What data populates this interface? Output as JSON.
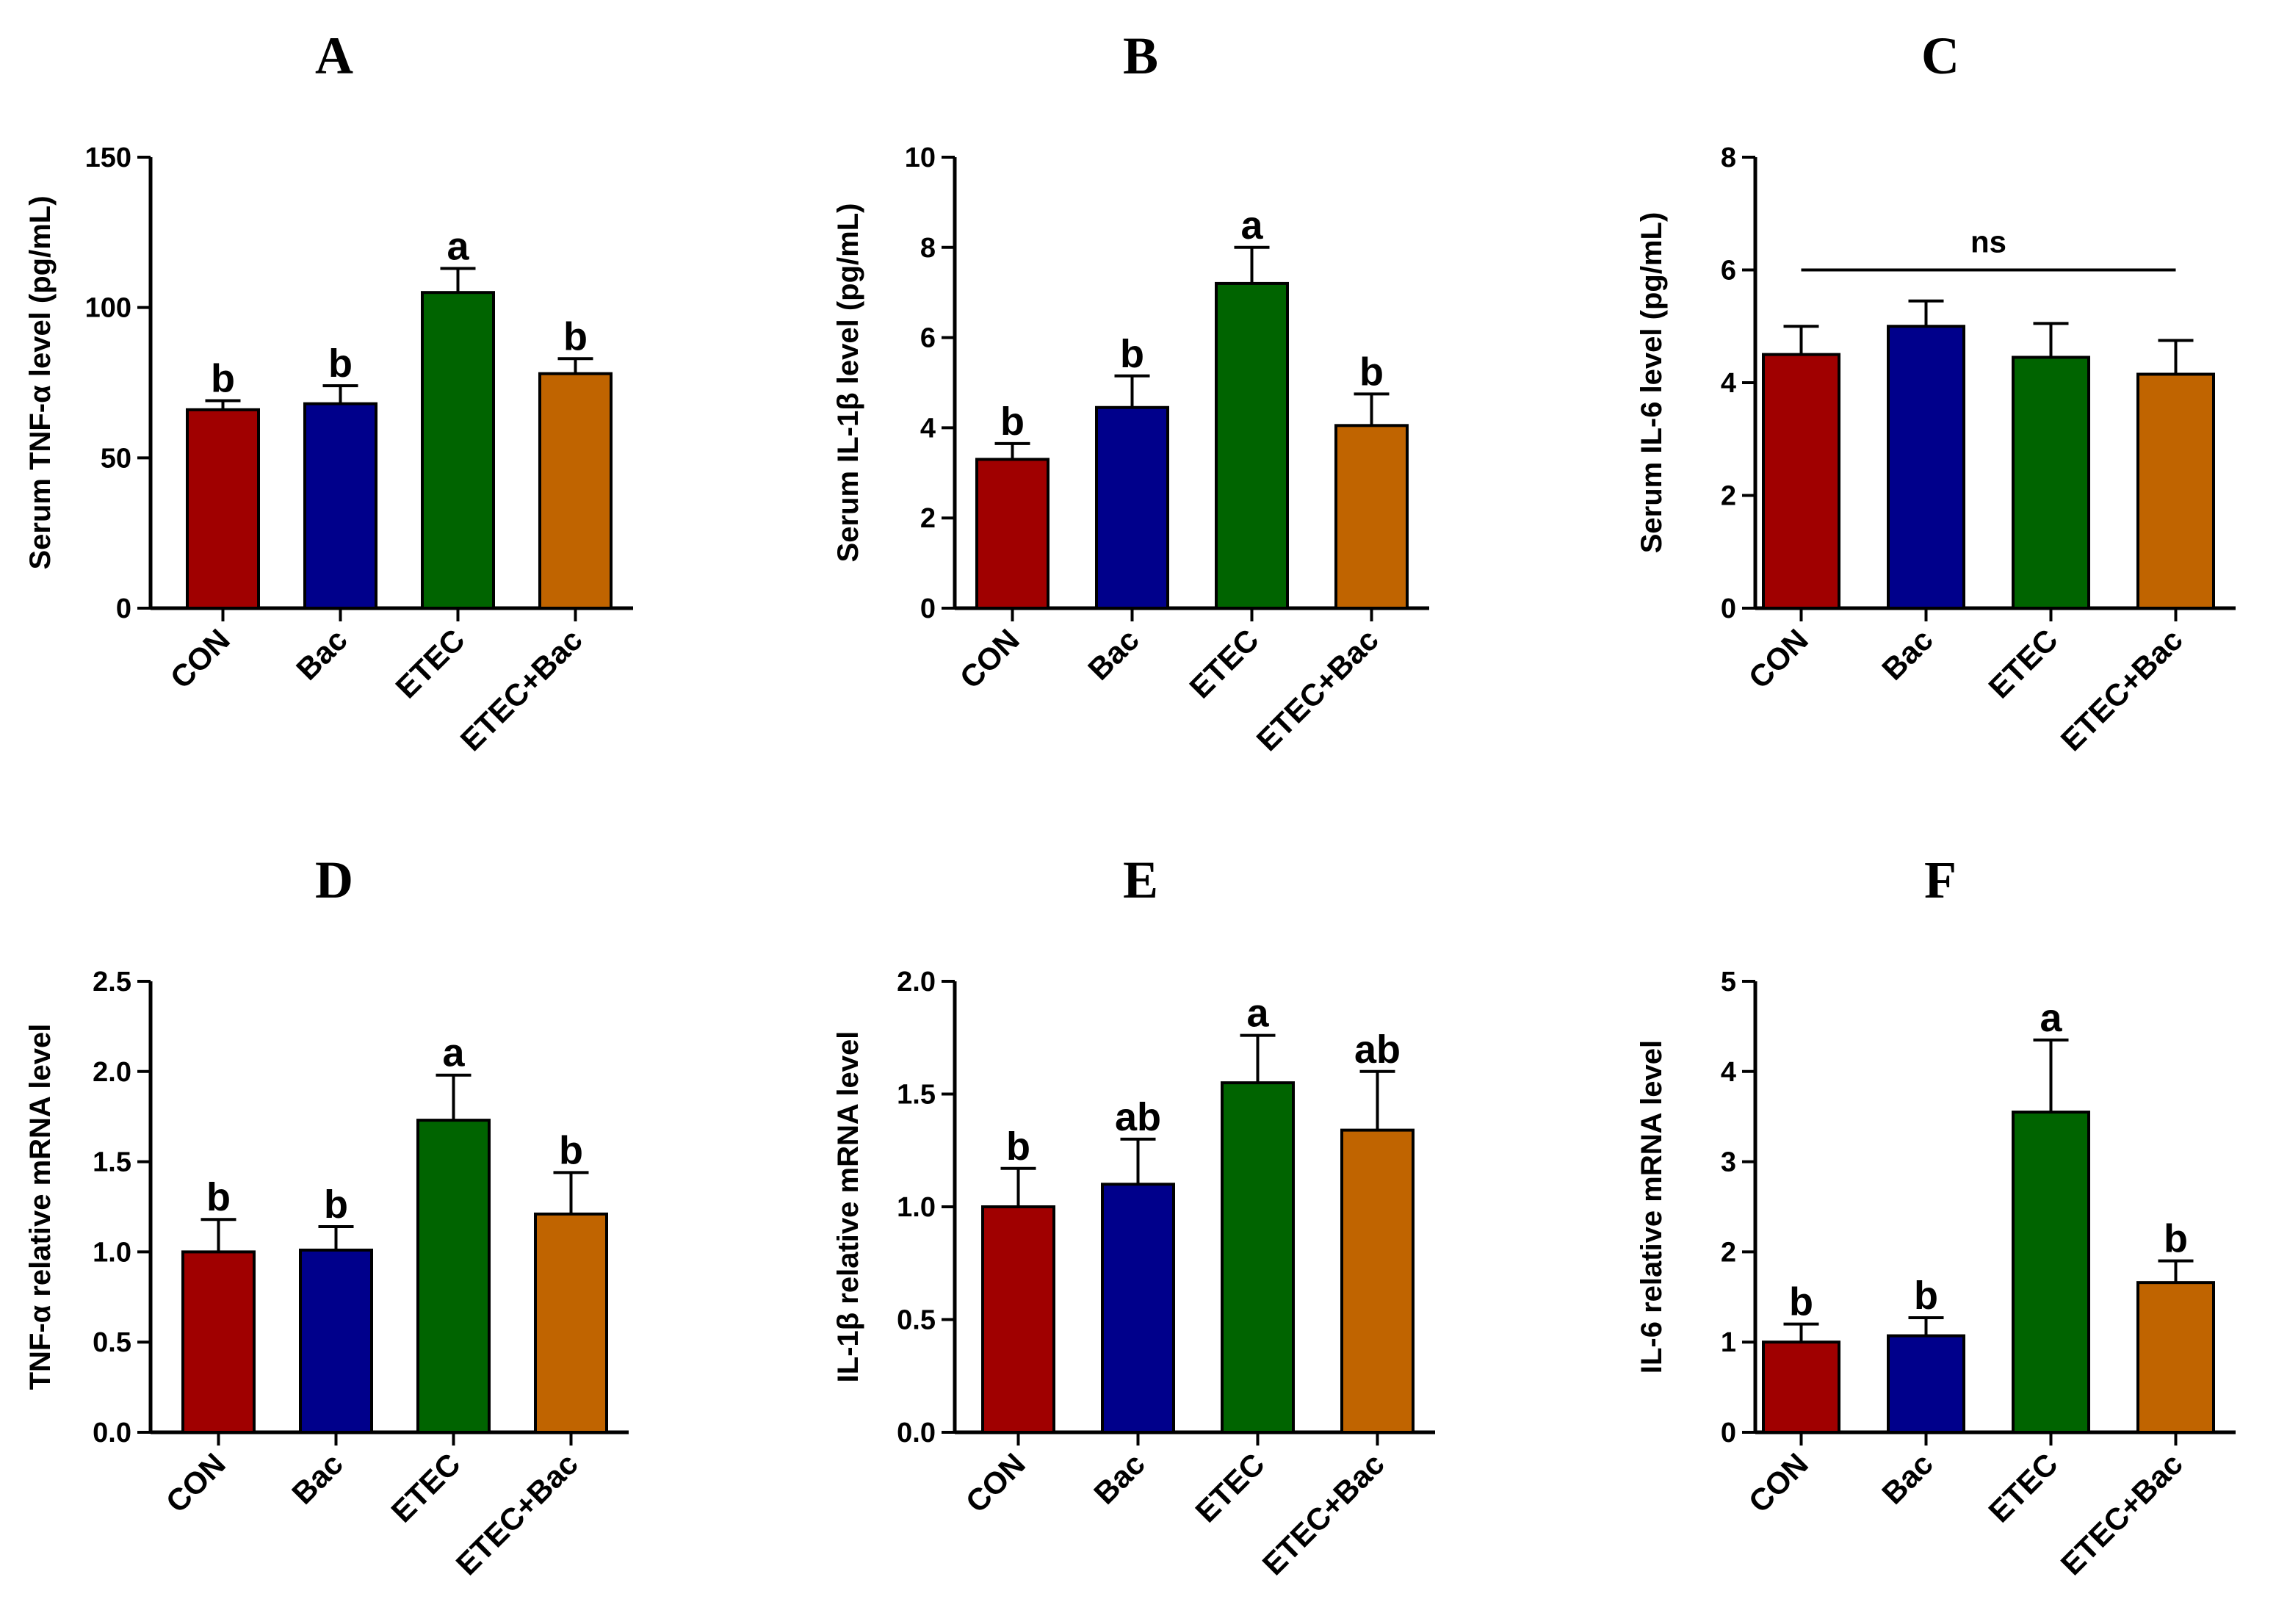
{
  "chart_data": [
    {
      "type": "bar",
      "panel": "A",
      "ylabel": "Serum TNF-α level (pg/mL)",
      "ylim": [
        0,
        150
      ],
      "yticks": [
        0,
        50,
        100,
        150
      ],
      "categories": [
        "CON",
        "Bac",
        "ETEC",
        "ETEC+Bac"
      ],
      "values": [
        66,
        68,
        105,
        78
      ],
      "errors": [
        3,
        6,
        8,
        5
      ],
      "sig_labels": [
        "b",
        "b",
        "a",
        "b"
      ]
    },
    {
      "type": "bar",
      "panel": "B",
      "ylabel": "Serum IL-1β level (pg/mL)",
      "ylim": [
        0,
        10
      ],
      "yticks": [
        0,
        2,
        4,
        6,
        8,
        10
      ],
      "categories": [
        "CON",
        "Bac",
        "ETEC",
        "ETEC+Bac"
      ],
      "values": [
        3.3,
        4.45,
        7.2,
        4.05
      ],
      "errors": [
        0.35,
        0.7,
        0.8,
        0.7
      ],
      "sig_labels": [
        "b",
        "b",
        "a",
        "b"
      ]
    },
    {
      "type": "bar",
      "panel": "C",
      "ylabel": "Serum IL-6 level (pg/mL)",
      "ylim": [
        0,
        8
      ],
      "yticks": [
        0,
        2,
        4,
        6,
        8
      ],
      "categories": [
        "CON",
        "Bac",
        "ETEC",
        "ETEC+Bac"
      ],
      "values": [
        4.5,
        5.0,
        4.45,
        4.15
      ],
      "errors": [
        0.5,
        0.45,
        0.6,
        0.6
      ],
      "sig_labels": [
        "",
        "",
        "",
        ""
      ],
      "annotation": "ns"
    },
    {
      "type": "bar",
      "panel": "D",
      "ylabel": "TNF-α relative mRNA level",
      "ylim": [
        0,
        2.5
      ],
      "yticks": [
        "0.0",
        "0.5",
        "1.0",
        "1.5",
        "2.0",
        "2.5"
      ],
      "categories": [
        "CON",
        "Bac",
        "ETEC",
        "ETEC+Bac"
      ],
      "values": [
        1.0,
        1.01,
        1.73,
        1.21
      ],
      "errors": [
        0.18,
        0.13,
        0.25,
        0.23
      ],
      "sig_labels": [
        "b",
        "b",
        "a",
        "b"
      ]
    },
    {
      "type": "bar",
      "panel": "E",
      "ylabel": "IL-1β relative mRNA level",
      "ylim": [
        0,
        2.0
      ],
      "yticks": [
        "0.0",
        "0.5",
        "1.0",
        "1.5",
        "2.0"
      ],
      "categories": [
        "CON",
        "Bac",
        "ETEC",
        "ETEC+Bac"
      ],
      "values": [
        1.0,
        1.1,
        1.55,
        1.34
      ],
      "errors": [
        0.17,
        0.2,
        0.21,
        0.26
      ],
      "sig_labels": [
        "b",
        "ab",
        "a",
        "ab"
      ]
    },
    {
      "type": "bar",
      "panel": "F",
      "ylabel": "IL-6 relative mRNA level",
      "ylim": [
        0,
        5
      ],
      "yticks": [
        0,
        1,
        2,
        3,
        4,
        5
      ],
      "categories": [
        "CON",
        "Bac",
        "ETEC",
        "ETEC+Bac"
      ],
      "values": [
        1.0,
        1.07,
        3.55,
        1.66
      ],
      "errors": [
        0.2,
        0.2,
        0.8,
        0.24
      ],
      "sig_labels": [
        "b",
        "b",
        "a",
        "b"
      ]
    }
  ],
  "colors": {
    "CON": "#a00000",
    "Bac": "#00008b",
    "ETEC": "#006400",
    "ETEC+Bac": "#c06400"
  }
}
